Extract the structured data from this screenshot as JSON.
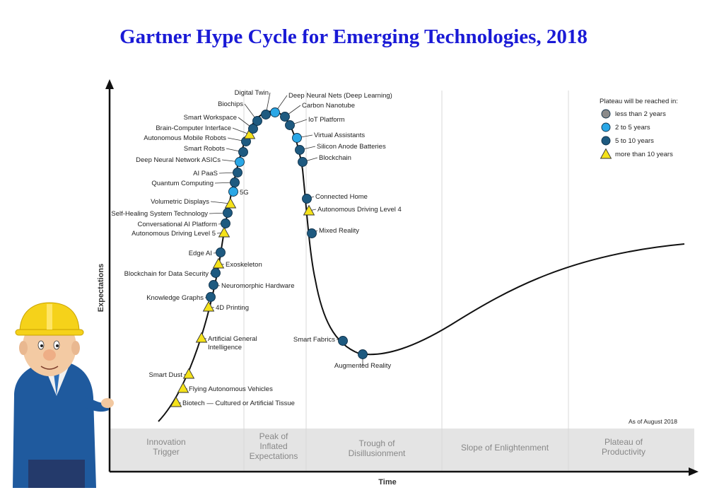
{
  "title": "Gartner Hype Cycle for Emerging Technologies, 2018",
  "colors": {
    "title": "#1a1ad6",
    "less_than_2": "#8a8a8a",
    "two_to_five": "#2aa7e6",
    "five_to_ten": "#1e5a80",
    "more_than_10": "#f5e21a"
  },
  "axes": {
    "x": "Time",
    "y": "Expectations"
  },
  "as_of": "As of August 2018",
  "legend": {
    "title": "Plateau will be reached in:",
    "items": [
      {
        "label": "less than 2 years",
        "kind": "less_than_2",
        "shape": "circle"
      },
      {
        "label": "2 to 5 years",
        "kind": "two_to_five",
        "shape": "circle"
      },
      {
        "label": "5 to 10 years",
        "kind": "five_to_ten",
        "shape": "circle"
      },
      {
        "label": "more than 10 years",
        "kind": "more_than_10",
        "shape": "triangle"
      }
    ]
  },
  "phases": [
    {
      "lines": [
        "Innovation",
        "Trigger"
      ]
    },
    {
      "lines": [
        "Peak of",
        "Inflated",
        "Expectations"
      ]
    },
    {
      "lines": [
        "Trough of",
        "Disillusionment"
      ]
    },
    {
      "lines": [
        "Slope of Enlightenment"
      ]
    },
    {
      "lines": [
        "Plateau of",
        "Productivity"
      ]
    }
  ],
  "technologies": [
    {
      "name": "Biotech — Cultured or Artificial Tissue",
      "kind": "more_than_10"
    },
    {
      "name": "Flying Autonomous Vehicles",
      "kind": "more_than_10"
    },
    {
      "name": "Smart Dust",
      "kind": "more_than_10"
    },
    {
      "name": "Artificial General Intelligence",
      "kind": "more_than_10"
    },
    {
      "name": "4D Printing",
      "kind": "more_than_10"
    },
    {
      "name": "Knowledge Graphs",
      "kind": "five_to_ten"
    },
    {
      "name": "Neuromorphic Hardware",
      "kind": "five_to_ten"
    },
    {
      "name": "Blockchain for Data Security",
      "kind": "five_to_ten"
    },
    {
      "name": "Exoskeleton",
      "kind": "more_than_10"
    },
    {
      "name": "Edge AI",
      "kind": "five_to_ten"
    },
    {
      "name": "Autonomous Driving Level 5",
      "kind": "more_than_10"
    },
    {
      "name": "Conversational AI Platform",
      "kind": "five_to_ten"
    },
    {
      "name": "Self-Healing System Technology",
      "kind": "five_to_ten"
    },
    {
      "name": "Volumetric Displays",
      "kind": "more_than_10"
    },
    {
      "name": "5G",
      "kind": "two_to_five"
    },
    {
      "name": "Quantum Computing",
      "kind": "five_to_ten"
    },
    {
      "name": "AI PaaS",
      "kind": "five_to_ten"
    },
    {
      "name": "Deep Neural Network ASICs",
      "kind": "two_to_five"
    },
    {
      "name": "Smart Robots",
      "kind": "five_to_ten"
    },
    {
      "name": "Autonomous Mobile Robots",
      "kind": "five_to_ten"
    },
    {
      "name": "Brain-Computer Interface",
      "kind": "more_than_10"
    },
    {
      "name": "Smart Workspace",
      "kind": "five_to_ten"
    },
    {
      "name": "Biochips",
      "kind": "five_to_ten"
    },
    {
      "name": "Digital Twin",
      "kind": "five_to_ten"
    },
    {
      "name": "Deep Neural Nets (Deep Learning)",
      "kind": "two_to_five"
    },
    {
      "name": "Carbon Nanotube",
      "kind": "five_to_ten"
    },
    {
      "name": "IoT Platform",
      "kind": "five_to_ten"
    },
    {
      "name": "Virtual Assistants",
      "kind": "two_to_five"
    },
    {
      "name": "Silicon Anode Batteries",
      "kind": "five_to_ten"
    },
    {
      "name": "Blockchain",
      "kind": "five_to_ten"
    },
    {
      "name": "Connected Home",
      "kind": "five_to_ten"
    },
    {
      "name": "Autonomous Driving Level 4",
      "kind": "more_than_10"
    },
    {
      "name": "Mixed Reality",
      "kind": "five_to_ten"
    },
    {
      "name": "Smart Fabrics",
      "kind": "five_to_ten"
    },
    {
      "name": "Augmented Reality",
      "kind": "five_to_ten"
    }
  ]
}
